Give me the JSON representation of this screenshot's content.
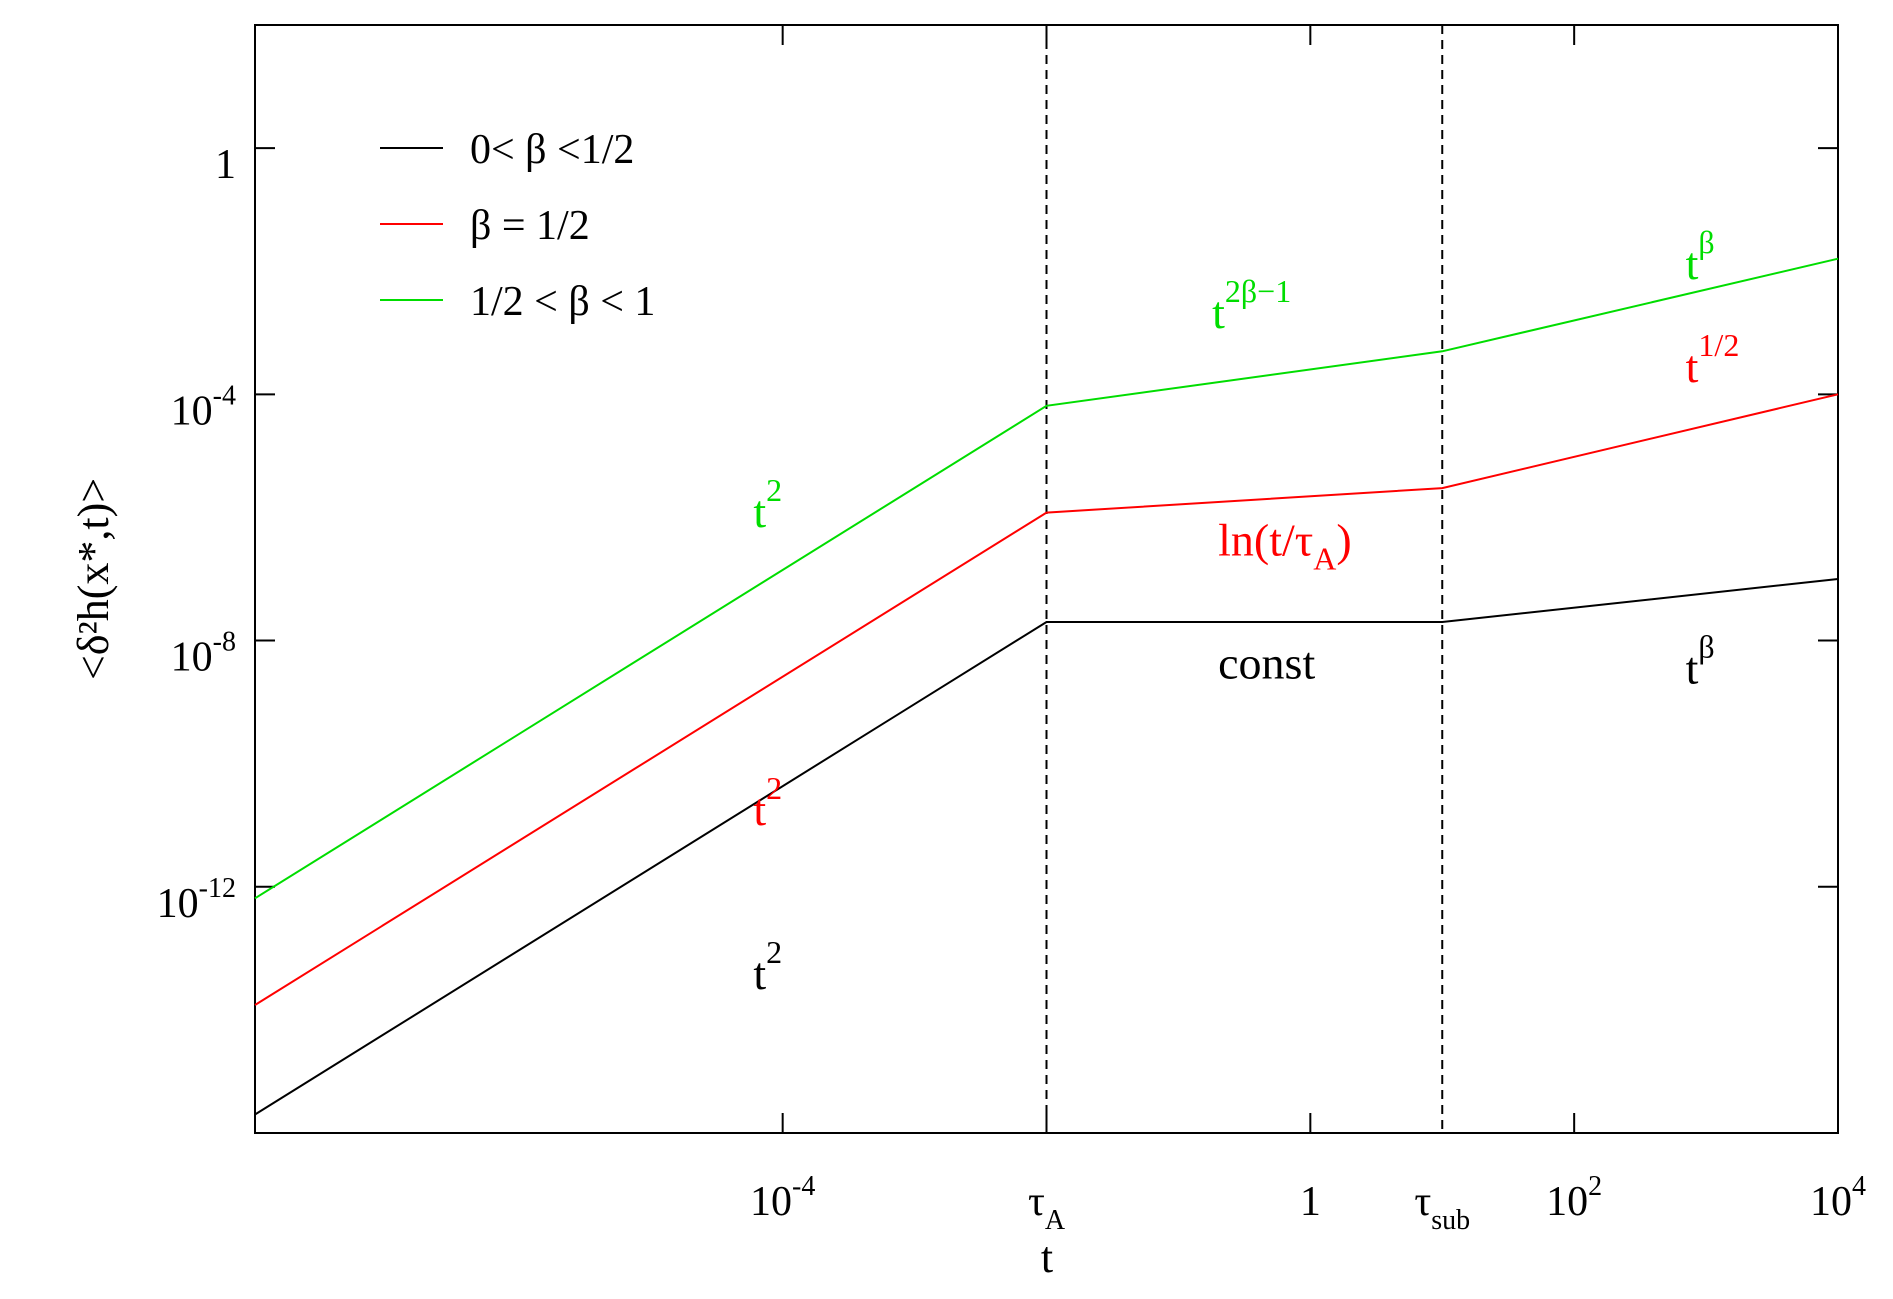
{
  "chart_data": {
    "type": "line",
    "x_scale": "log",
    "y_scale": "log",
    "xlim": [
      1e-08,
      10000
    ],
    "ylim": [
      1e-16,
      100
    ],
    "xlabel": "t",
    "ylabel": "<δ²h(x*,t)>",
    "grid": false,
    "legend_placement": "top-left",
    "x_tick_labels": [
      {
        "x": 0.0001,
        "base": "10",
        "sup": "-4",
        "sub": ""
      },
      {
        "x": 0.01,
        "base": "τ",
        "sup": "",
        "sub": "A"
      },
      {
        "x": 1,
        "base": "1",
        "sup": "",
        "sub": ""
      },
      {
        "x": 10,
        "base": "τ",
        "sup": "",
        "sub": "sub"
      },
      {
        "x": 100,
        "base": "10",
        "sup": "2",
        "sub": ""
      },
      {
        "x": 10000,
        "base": "10",
        "sup": "4",
        "sub": ""
      }
    ],
    "y_tick_labels": [
      {
        "y": 1,
        "base": "1",
        "sup": ""
      },
      {
        "y": 0.0001,
        "base": "10",
        "sup": "-4"
      },
      {
        "y": 1e-08,
        "base": "10",
        "sup": "-8"
      },
      {
        "y": 1e-12,
        "base": "10",
        "sup": "-12"
      }
    ],
    "y_minor_ticks": [
      1,
      0.0001,
      1e-08,
      1e-12
    ],
    "x_minor_ticks": [
      0.0001,
      0.01,
      1,
      100,
      10000
    ],
    "vertical_lines": [
      {
        "x": 0.01,
        "label": "τA"
      },
      {
        "x": 10,
        "label": "τsub"
      }
    ],
    "series": [
      {
        "name": "0< β <1/2",
        "color": "#000000",
        "points": [
          [
            1e-08,
            2e-16
          ],
          [
            0.01,
            2e-08
          ],
          [
            10,
            2e-08
          ],
          [
            10000,
            1e-07
          ]
        ]
      },
      {
        "name": "β = 1/2",
        "color": "#ff0000",
        "points": [
          [
            1e-08,
            1.2e-14
          ],
          [
            0.01,
            1.2e-06
          ],
          [
            10,
            3e-06
          ],
          [
            10000,
            0.0001
          ]
        ]
      },
      {
        "name": "1/2 < β < 1",
        "color": "#00dd00",
        "points": [
          [
            1e-08,
            6.5e-13
          ],
          [
            0.01,
            6.5e-05
          ],
          [
            10,
            0.0005
          ],
          [
            10000,
            0.016
          ]
        ]
      }
    ],
    "annotations": [
      {
        "base": "t",
        "sup": "2",
        "sub": "",
        "color": "#00dd00",
        "x": 6e-05,
        "y": 7e-07
      },
      {
        "base": "t",
        "sup": "2",
        "sub": "",
        "color": "#ff0000",
        "x": 6e-05,
        "y": 1e-11
      },
      {
        "base": "t",
        "sup": "2",
        "sub": "",
        "color": "#000000",
        "x": 6e-05,
        "y": 2.2e-14
      },
      {
        "base": "t",
        "sup": "2β−1",
        "sub": "",
        "color": "#00dd00",
        "x": 0.18,
        "y": 0.0012
      },
      {
        "base": "ln(t/τ",
        "sup": "",
        "sub": "A",
        "tail": ")",
        "color": "#ff0000",
        "x": 0.2,
        "y": 2.4e-07
      },
      {
        "base": "const",
        "sup": "",
        "sub": "",
        "color": "#000000",
        "x": 0.2,
        "y": 2.4e-09
      },
      {
        "base": "t",
        "sup": "β",
        "sub": "",
        "color": "#00dd00",
        "x": 700,
        "y": 0.0075
      },
      {
        "base": "t",
        "sup": "1/2",
        "sub": "",
        "color": "#ff0000",
        "x": 700,
        "y": 0.00016
      },
      {
        "base": "t",
        "sup": "β",
        "sub": "",
        "color": "#000000",
        "x": 700,
        "y": 2e-09
      }
    ]
  }
}
